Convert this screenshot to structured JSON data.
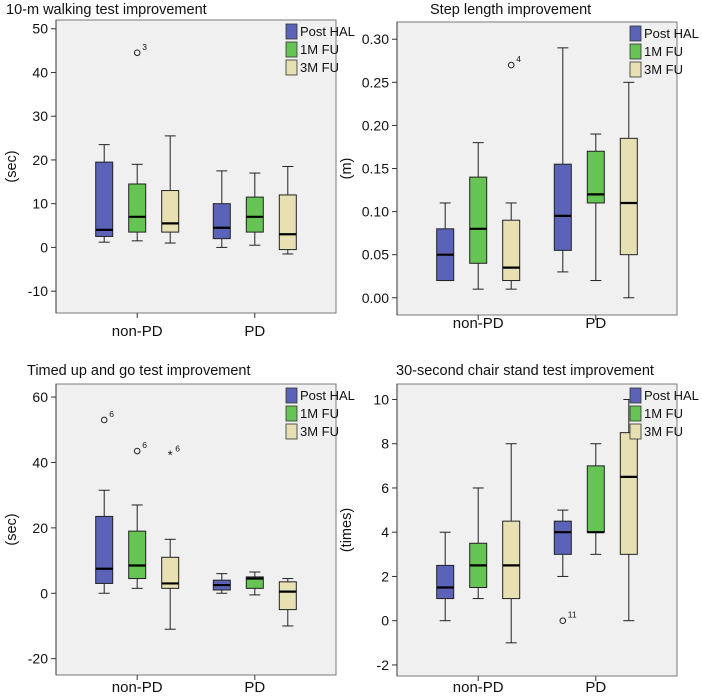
{
  "colors": {
    "post_hal": "#5b63b8",
    "fu_1m": "#65c453",
    "fu_3m": "#e7e0b3",
    "plot_bg": "#f0f0f0",
    "frame": "#7a7a7a"
  },
  "chart_data": [
    {
      "type": "box",
      "title": "10-m walking test improvement",
      "ylabel": "(sec)",
      "xlabel": "",
      "ylim": [
        -15,
        52
      ],
      "yticks": [
        -10,
        0,
        10,
        20,
        30,
        40,
        50
      ],
      "legend": [
        "Post HAL",
        "1M FU",
        "3M FU"
      ],
      "categories": [
        "non-PD",
        "PD"
      ],
      "series": [
        {
          "name": "Post HAL",
          "boxes": [
            {
              "min": 1.2,
              "q1": 2.5,
              "median": 4.0,
              "q3": 19.5,
              "max": 23.5,
              "outliers": []
            },
            {
              "min": 0.0,
              "q1": 2.0,
              "median": 4.5,
              "q3": 10.0,
              "max": 17.5,
              "outliers": []
            }
          ]
        },
        {
          "name": "1M FU",
          "boxes": [
            {
              "min": 1.5,
              "q1": 3.5,
              "median": 7.0,
              "q3": 14.5,
              "max": 19.0,
              "outliers": [
                {
                  "value": 44.5,
                  "label": "3",
                  "marker": "circle"
                }
              ]
            },
            {
              "min": 0.5,
              "q1": 3.5,
              "median": 7.0,
              "q3": 11.5,
              "max": 17.0,
              "outliers": []
            }
          ]
        },
        {
          "name": "3M FU",
          "boxes": [
            {
              "min": 1.0,
              "q1": 3.5,
              "median": 5.5,
              "q3": 13.0,
              "max": 25.5,
              "outliers": []
            },
            {
              "min": -1.5,
              "q1": -0.5,
              "median": 3.0,
              "q3": 12.0,
              "max": 18.5,
              "outliers": []
            }
          ]
        }
      ]
    },
    {
      "type": "box",
      "title": "Step length improvement",
      "ylabel": "(m)",
      "xlabel": "",
      "ylim": [
        -0.02,
        0.32
      ],
      "yticks": [
        "0.00",
        "0.05",
        "0.10",
        "0.15",
        "0.20",
        "0.25",
        "0.30"
      ],
      "legend": [
        "Post HAL",
        "1M FU",
        "3M FU"
      ],
      "categories": [
        "non-PD",
        "PD"
      ],
      "series": [
        {
          "name": "Post HAL",
          "boxes": [
            {
              "min": 0.02,
              "q1": 0.02,
              "median": 0.05,
              "q3": 0.08,
              "max": 0.11,
              "outliers": []
            },
            {
              "min": 0.03,
              "q1": 0.055,
              "median": 0.095,
              "q3": 0.155,
              "max": 0.29,
              "outliers": []
            }
          ]
        },
        {
          "name": "1M FU",
          "boxes": [
            {
              "min": 0.01,
              "q1": 0.04,
              "median": 0.08,
              "q3": 0.14,
              "max": 0.18,
              "outliers": []
            },
            {
              "min": 0.02,
              "q1": 0.11,
              "median": 0.12,
              "q3": 0.17,
              "max": 0.19,
              "outliers": []
            }
          ]
        },
        {
          "name": "3M FU",
          "boxes": [
            {
              "min": 0.01,
              "q1": 0.02,
              "median": 0.035,
              "q3": 0.09,
              "max": 0.11,
              "outliers": [
                {
                  "value": 0.27,
                  "label": "4",
                  "marker": "circle"
                }
              ]
            },
            {
              "min": 0.0,
              "q1": 0.05,
              "median": 0.11,
              "q3": 0.185,
              "max": 0.25,
              "outliers": []
            }
          ]
        }
      ]
    },
    {
      "type": "box",
      "title": "Timed up and go test improvement",
      "ylabel": "(sec)",
      "xlabel": "",
      "ylim": [
        -25,
        64
      ],
      "yticks": [
        -20,
        0,
        20,
        40,
        60
      ],
      "legend": [
        "Post HAL",
        "1M FU",
        "3M FU"
      ],
      "categories": [
        "non-PD",
        "PD"
      ],
      "series": [
        {
          "name": "Post HAL",
          "boxes": [
            {
              "min": 0.0,
              "q1": 3.0,
              "median": 7.5,
              "q3": 23.5,
              "max": 31.5,
              "outliers": [
                {
                  "value": 53.0,
                  "label": "6",
                  "marker": "circle"
                }
              ]
            },
            {
              "min": 0.0,
              "q1": 1.0,
              "median": 2.5,
              "q3": 4.0,
              "max": 6.0,
              "outliers": []
            }
          ]
        },
        {
          "name": "1M FU",
          "boxes": [
            {
              "min": 1.5,
              "q1": 4.5,
              "median": 8.5,
              "q3": 19.0,
              "max": 27.0,
              "outliers": [
                {
                  "value": 43.5,
                  "label": "6",
                  "marker": "circle"
                }
              ]
            },
            {
              "min": -0.5,
              "q1": 1.5,
              "median": 4.5,
              "q3": 5.0,
              "max": 6.5,
              "outliers": []
            }
          ]
        },
        {
          "name": "3M FU",
          "boxes": [
            {
              "min": -11.0,
              "q1": 1.5,
              "median": 3.0,
              "q3": 11.0,
              "max": 16.5,
              "outliers": [
                {
                  "value": 42.5,
                  "label": "6",
                  "marker": "star"
                }
              ]
            },
            {
              "min": -10.0,
              "q1": -5.0,
              "median": 0.5,
              "q3": 3.5,
              "max": 4.5,
              "outliers": []
            }
          ]
        }
      ]
    },
    {
      "type": "box",
      "title": "30-second chair stand test improvement",
      "ylabel": "(times)",
      "xlabel": "",
      "ylim": [
        -2.5,
        10.7
      ],
      "yticks": [
        -2,
        0,
        2,
        4,
        6,
        8,
        10
      ],
      "legend": [
        "Post HAL",
        "1M FU",
        "3M FU"
      ],
      "categories": [
        "non-PD",
        "PD"
      ],
      "series": [
        {
          "name": "Post HAL",
          "boxes": [
            {
              "min": 0.0,
              "q1": 1.0,
              "median": 1.5,
              "q3": 2.5,
              "max": 4.0,
              "outliers": []
            },
            {
              "min": 2.0,
              "q1": 3.0,
              "median": 4.0,
              "q3": 4.5,
              "max": 5.0,
              "outliers": [
                {
                  "value": 0.0,
                  "label": "11",
                  "marker": "circle"
                }
              ]
            }
          ]
        },
        {
          "name": "1M FU",
          "boxes": [
            {
              "min": 1.0,
              "q1": 1.5,
              "median": 2.5,
              "q3": 3.5,
              "max": 6.0,
              "outliers": []
            },
            {
              "min": 3.0,
              "q1": 4.0,
              "median": 4.0,
              "q3": 7.0,
              "max": 8.0,
              "outliers": []
            }
          ]
        },
        {
          "name": "3M FU",
          "boxes": [
            {
              "min": -1.0,
              "q1": 1.0,
              "median": 2.5,
              "q3": 4.5,
              "max": 8.0,
              "outliers": []
            },
            {
              "min": 0.0,
              "q1": 3.0,
              "median": 6.5,
              "q3": 8.5,
              "max": 10.0,
              "outliers": []
            }
          ]
        }
      ]
    }
  ]
}
